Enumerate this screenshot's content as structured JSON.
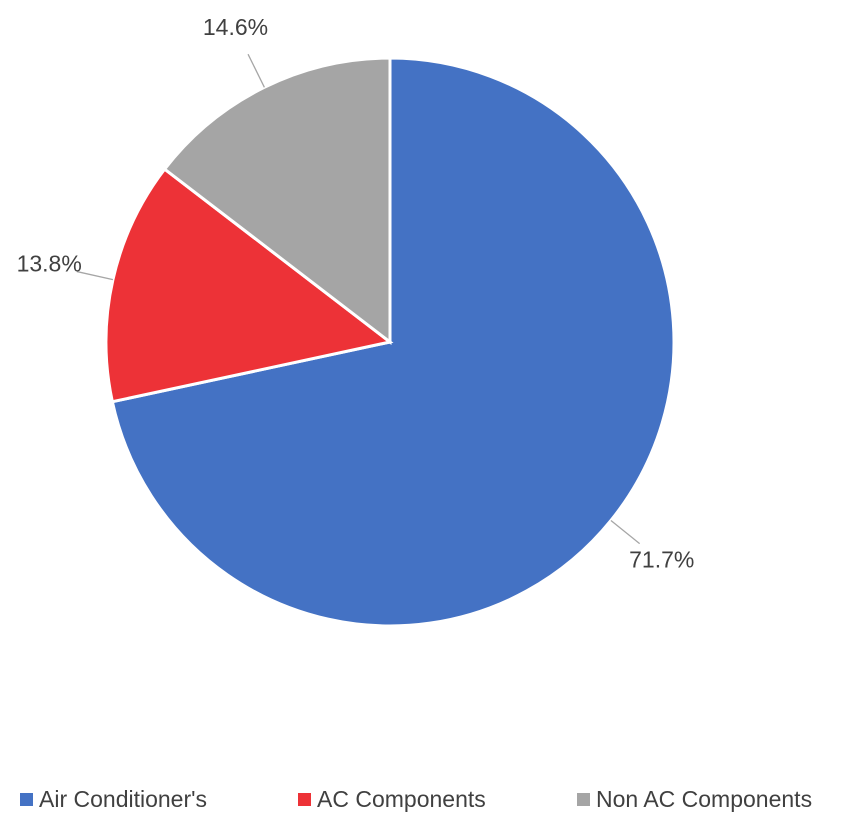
{
  "chart_data": {
    "type": "pie",
    "categories": [
      "Air Conditioner's",
      "AC Components",
      "Non AC Components"
    ],
    "values": [
      71.7,
      13.8,
      14.6
    ],
    "value_labels": [
      "71.7%",
      "13.8%",
      "14.6%"
    ],
    "colors": [
      "#4472c4",
      "#ed3237",
      "#a5a5a5"
    ],
    "legend": "bottom"
  }
}
